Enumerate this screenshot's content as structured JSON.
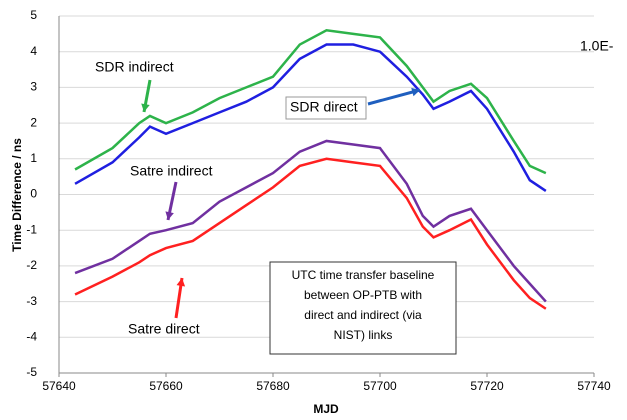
{
  "chart_data": {
    "type": "line",
    "xlabel": "MJD",
    "ylabel": "Time Difference / ns",
    "x": [
      57643,
      57650,
      57655,
      57657,
      57660,
      57665,
      57670,
      57675,
      57680,
      57685,
      57690,
      57695,
      57700,
      57705,
      57708,
      57710,
      57713,
      57717,
      57720,
      57725,
      57728,
      57731
    ],
    "series": [
      {
        "name": "SDR indirect",
        "color": "#2db34a",
        "values": [
          0.7,
          1.3,
          2.0,
          2.2,
          2.0,
          2.3,
          2.7,
          3.0,
          3.3,
          4.2,
          4.6,
          4.5,
          4.4,
          3.6,
          3.0,
          2.6,
          2.9,
          3.1,
          2.7,
          1.5,
          0.8,
          0.6
        ]
      },
      {
        "name": "SDR direct",
        "color": "#1f1fe0",
        "values": [
          0.3,
          0.9,
          1.6,
          1.9,
          1.7,
          2.0,
          2.3,
          2.6,
          3.0,
          3.8,
          4.2,
          4.2,
          4.0,
          3.3,
          2.8,
          2.4,
          2.6,
          2.9,
          2.4,
          1.2,
          0.4,
          0.1
        ]
      },
      {
        "name": "Satre indirect",
        "color": "#7030a0",
        "values": [
          -2.2,
          -1.8,
          -1.3,
          -1.1,
          -1.0,
          -0.8,
          -0.2,
          0.2,
          0.6,
          1.2,
          1.5,
          1.4,
          1.3,
          0.3,
          -0.6,
          -0.9,
          -0.6,
          -0.4,
          -1.0,
          -2.0,
          -2.5,
          -3.0
        ]
      },
      {
        "name": "Satre direct",
        "color": "#ff2020",
        "values": [
          -2.8,
          -2.3,
          -1.9,
          -1.7,
          -1.5,
          -1.3,
          -0.8,
          -0.3,
          0.2,
          0.8,
          1.0,
          0.9,
          0.8,
          -0.1,
          -0.9,
          -1.2,
          -1.0,
          -0.7,
          -1.4,
          -2.4,
          -2.9,
          -3.2
        ]
      }
    ],
    "xlim": [
      57640,
      57740
    ],
    "xticks": [
      57640,
      57660,
      57680,
      57700,
      57720,
      57740
    ],
    "ylim": [
      -5,
      5
    ],
    "yticks": [
      -5,
      -4,
      -3,
      -2,
      -1,
      0,
      1,
      2,
      3,
      4,
      5
    ],
    "grid": true,
    "annotations": [
      {
        "text": "SDR indirect",
        "color": "#2db34a"
      },
      {
        "text": "SDR direct",
        "color": "#1f5fbf"
      },
      {
        "text": "Satre indirect",
        "color": "#7030a0"
      },
      {
        "text": "Satre direct",
        "color": "#ff2020"
      },
      {
        "text": "1.0E-",
        "color": "#000000"
      }
    ],
    "note_box": {
      "lines": [
        "UTC time transfer baseline",
        "between OP-PTB with",
        "direct and indirect (via",
        "NIST) links"
      ]
    }
  }
}
